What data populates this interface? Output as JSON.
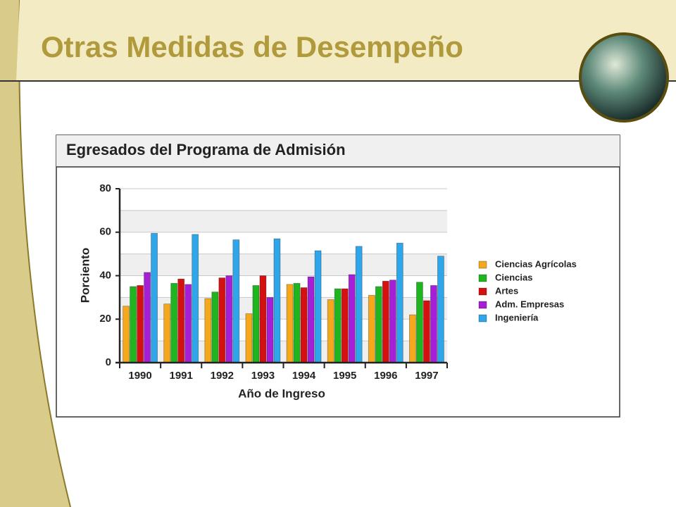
{
  "slide_title": "Otras Medidas de Desempeño",
  "chart_data": {
    "type": "bar",
    "title": "Egresados del Programa de Admisión",
    "x_label": "Año de Ingreso",
    "y_label": "Porciento",
    "categories": [
      "1990",
      "1991",
      "1992",
      "1993",
      "1994",
      "1995",
      "1996",
      "1997"
    ],
    "series": [
      {
        "name": "Ciencias Agrícolas",
        "color": "#f5a81c",
        "values": [
          26,
          27,
          29.5,
          22.5,
          36,
          29,
          31,
          22
        ]
      },
      {
        "name": "Ciencias",
        "color": "#1fb51f",
        "values": [
          35,
          36.5,
          32.5,
          35.5,
          36.5,
          34,
          35,
          37
        ]
      },
      {
        "name": "Artes",
        "color": "#d41010",
        "values": [
          35.5,
          38.5,
          39,
          40,
          34.5,
          34,
          37.5,
          28.5
        ]
      },
      {
        "name": "Adm. Empresas",
        "color": "#a41fd6",
        "values": [
          41.5,
          36,
          40,
          30,
          39.5,
          40.5,
          38,
          35.5
        ]
      },
      {
        "name": "Ingeniería",
        "color": "#2fa6ea",
        "values": [
          59.5,
          59,
          56.5,
          57,
          51.5,
          53.5,
          55,
          49
        ]
      }
    ],
    "ylim": [
      0,
      80
    ],
    "yticks": [
      0,
      20,
      40,
      60,
      80
    ],
    "minor_yticks": [
      10,
      30,
      50,
      70
    ],
    "grid": true,
    "legend": "right"
  }
}
